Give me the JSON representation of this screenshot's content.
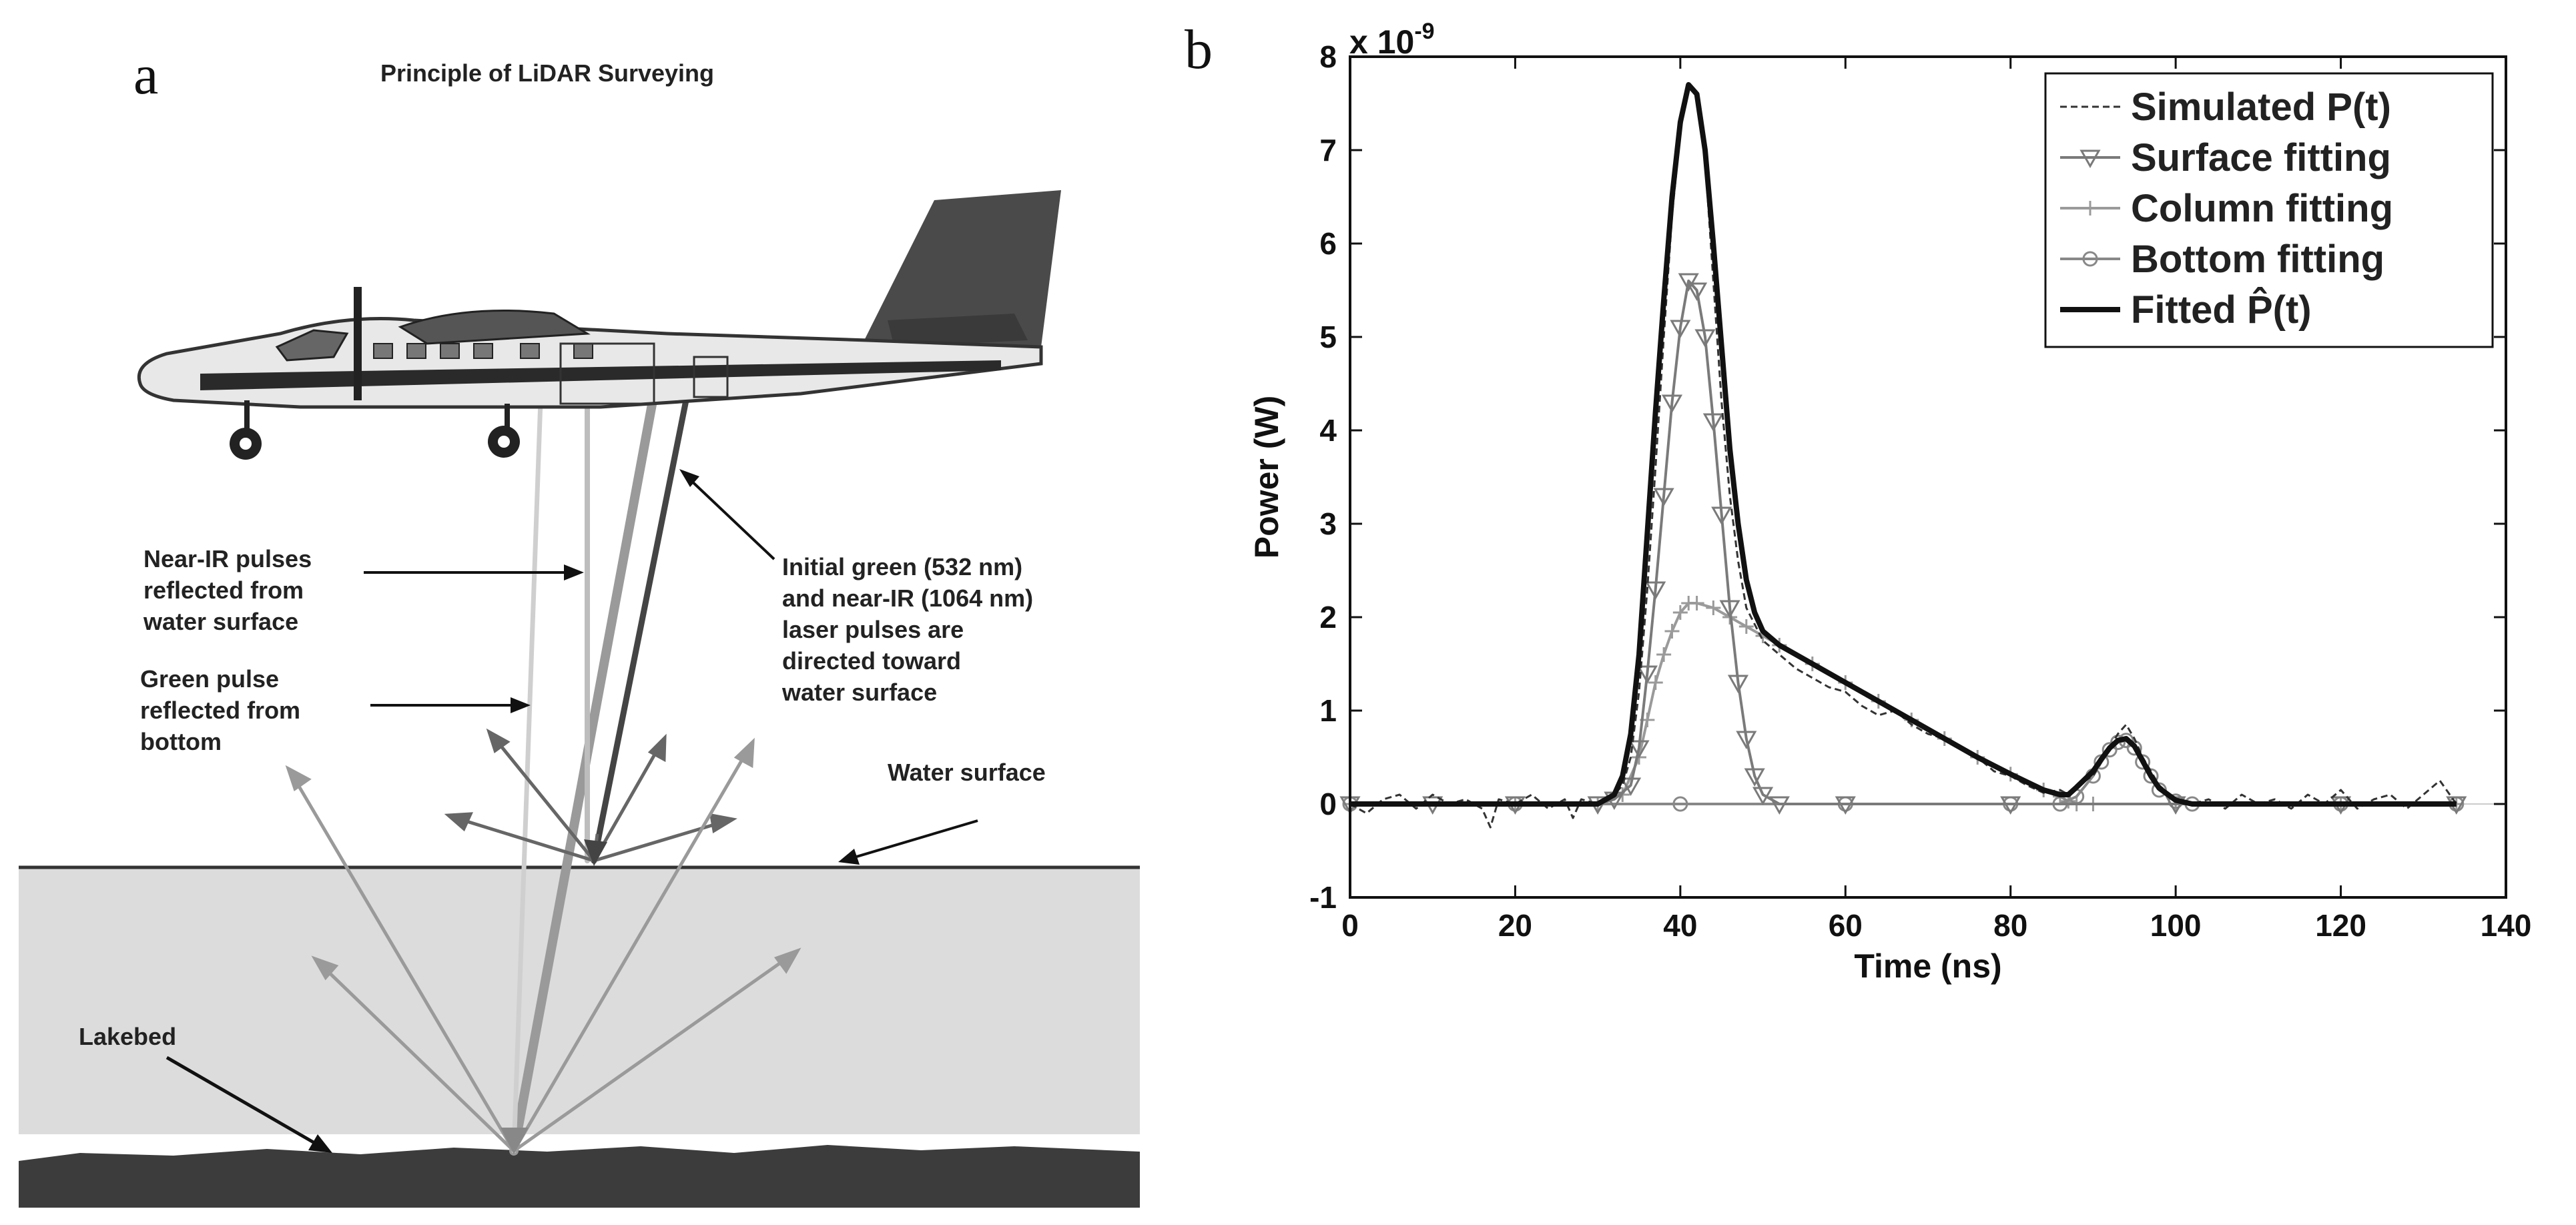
{
  "panel_a": {
    "letter": "a",
    "title": "Principle of LiDAR Surveying",
    "labels": {
      "near_ir_line1": "Near-IR pulses",
      "near_ir_line2": "reflected from",
      "near_ir_line3": "water surface",
      "green_line1": "Green pulse",
      "green_line2": "reflected from",
      "green_line3": "bottom",
      "initial_line1": "Initial green (532 nm)",
      "initial_line2": "and near-IR (1064 nm)",
      "initial_line3": "laser pulses are",
      "initial_line4": "directed toward",
      "initial_line5": "water surface",
      "water_surface": "Water surface",
      "lakebed": "Lakebed"
    },
    "colors": {
      "sky": "#ffffff",
      "water": "#dcdcdc",
      "lakebed": "#3c3c3c",
      "fuselage": "#e8e8e8",
      "tail": "#4a4a4a"
    }
  },
  "panel_b": {
    "letter": "b",
    "exponent_label": "x 10",
    "exponent_power": "-9"
  },
  "chart_data": {
    "type": "line",
    "title": "",
    "xlabel": "Time (ns)",
    "ylabel": "Power (W)",
    "xlim": [
      0,
      140
    ],
    "ylim": [
      -1,
      8
    ],
    "y_scale_note": "x 10^-9",
    "xticks": [
      0,
      20,
      40,
      60,
      80,
      100,
      120,
      140
    ],
    "yticks": [
      -1,
      0,
      1,
      2,
      3,
      4,
      5,
      6,
      7,
      8
    ],
    "legend_position": "top-right",
    "series": [
      {
        "name": "Simulated P(t)",
        "style": "dashed",
        "color": "#333333",
        "x": [
          0,
          2,
          4,
          6,
          8,
          10,
          12,
          14,
          16,
          17,
          18,
          20,
          22,
          24,
          26,
          27,
          28,
          30,
          32,
          33,
          34,
          35,
          36,
          37,
          38,
          39,
          40,
          41,
          42,
          43,
          44,
          45,
          46,
          47,
          48,
          50,
          52,
          54,
          56,
          58,
          60,
          62,
          64,
          66,
          68,
          70,
          72,
          74,
          76,
          78,
          80,
          82,
          84,
          86,
          87,
          88,
          90,
          91,
          92,
          93,
          94,
          95,
          96,
          97,
          98,
          100,
          102,
          104,
          106,
          108,
          110,
          112,
          114,
          116,
          118,
          120,
          122,
          124,
          126,
          128,
          130,
          132,
          134
        ],
        "y": [
          0.0,
          -0.1,
          0.05,
          0.1,
          -0.05,
          0.1,
          0.0,
          0.05,
          -0.05,
          -0.25,
          0.05,
          0.0,
          0.1,
          -0.05,
          0.05,
          -0.15,
          0.05,
          0.0,
          0.1,
          0.2,
          0.5,
          1.2,
          2.3,
          3.6,
          5.0,
          6.3,
          7.2,
          7.7,
          7.6,
          6.9,
          5.6,
          4.3,
          3.3,
          2.6,
          2.1,
          1.75,
          1.6,
          1.45,
          1.35,
          1.25,
          1.2,
          1.05,
          0.95,
          1.0,
          0.85,
          0.75,
          0.7,
          0.6,
          0.5,
          0.35,
          0.3,
          0.2,
          0.12,
          0.15,
          0.1,
          0.2,
          0.3,
          0.45,
          0.6,
          0.75,
          0.85,
          0.7,
          0.5,
          0.35,
          0.2,
          0.05,
          0.0,
          0.05,
          -0.05,
          0.1,
          0.0,
          0.05,
          -0.05,
          0.1,
          0.0,
          0.15,
          -0.05,
          0.05,
          0.1,
          -0.05,
          0.1,
          0.25,
          0.0
        ]
      },
      {
        "name": "Surface fitting",
        "style": "solid-triangle-markers",
        "color": "#7a7a7a",
        "x": [
          0,
          10,
          20,
          30,
          32,
          34,
          35,
          36,
          37,
          38,
          39,
          40,
          41,
          42,
          43,
          44,
          45,
          46,
          47,
          48,
          49,
          50,
          52,
          60,
          80,
          100,
          120,
          134
        ],
        "y": [
          0,
          0,
          0,
          0,
          0.05,
          0.2,
          0.6,
          1.4,
          2.3,
          3.3,
          4.3,
          5.1,
          5.6,
          5.5,
          5.0,
          4.1,
          3.1,
          2.1,
          1.3,
          0.7,
          0.3,
          0.1,
          0.0,
          0,
          0,
          0,
          0,
          0
        ]
      },
      {
        "name": "Column fitting",
        "style": "solid-plus-markers",
        "color": "#9a9a9a",
        "x": [
          0,
          20,
          30,
          33,
          35,
          36,
          37,
          38,
          39,
          40,
          41,
          42,
          44,
          46,
          48,
          50,
          52,
          56,
          60,
          64,
          68,
          72,
          76,
          80,
          84,
          86,
          87,
          88,
          90,
          100,
          120,
          134
        ],
        "y": [
          0,
          0,
          0,
          0.1,
          0.5,
          0.9,
          1.3,
          1.6,
          1.85,
          2.05,
          2.15,
          2.15,
          2.1,
          2.0,
          1.9,
          1.8,
          1.7,
          1.5,
          1.3,
          1.1,
          0.9,
          0.7,
          0.5,
          0.32,
          0.15,
          0.08,
          0.03,
          0,
          0,
          0,
          0,
          0
        ]
      },
      {
        "name": "Bottom fitting",
        "style": "solid-circle-markers",
        "color": "#888888",
        "x": [
          0,
          20,
          40,
          60,
          80,
          86,
          88,
          90,
          91,
          92,
          93,
          94,
          95,
          96,
          97,
          98,
          100,
          102,
          120,
          134
        ],
        "y": [
          0,
          0,
          0,
          0,
          0,
          0.0,
          0.08,
          0.3,
          0.45,
          0.58,
          0.66,
          0.68,
          0.6,
          0.45,
          0.3,
          0.15,
          0.03,
          0,
          0,
          0
        ]
      },
      {
        "name": "Fitted P̂(t)",
        "style": "solid-thick",
        "color": "#111111",
        "x": [
          0,
          10,
          20,
          30,
          32,
          33,
          34,
          35,
          36,
          37,
          38,
          39,
          40,
          41,
          42,
          43,
          44,
          45,
          46,
          47,
          48,
          49,
          50,
          52,
          56,
          60,
          64,
          68,
          72,
          76,
          80,
          84,
          86,
          87,
          88,
          90,
          91,
          92,
          93,
          94,
          95,
          96,
          97,
          98,
          100,
          102,
          110,
          120,
          134
        ],
        "y": [
          0,
          0,
          0,
          0,
          0.1,
          0.3,
          0.75,
          1.6,
          2.9,
          4.2,
          5.4,
          6.5,
          7.3,
          7.7,
          7.6,
          7.0,
          6.0,
          4.9,
          3.8,
          3.0,
          2.4,
          2.05,
          1.85,
          1.7,
          1.5,
          1.3,
          1.1,
          0.9,
          0.7,
          0.5,
          0.32,
          0.15,
          0.1,
          0.1,
          0.18,
          0.35,
          0.48,
          0.6,
          0.68,
          0.7,
          0.62,
          0.46,
          0.3,
          0.17,
          0.04,
          0.0,
          0,
          0,
          0
        ]
      }
    ]
  }
}
